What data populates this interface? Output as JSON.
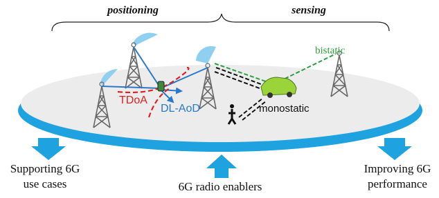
{
  "header": {
    "left": "positioning",
    "right": "sensing"
  },
  "labels": {
    "bistatic": "bistatic",
    "tdoa": "TDoA",
    "dl_aod": "DL-AoD",
    "monostatic": "monostatic"
  },
  "footer": {
    "left": [
      "Supporting 6G",
      "use cases"
    ],
    "center": "6G radio enablers",
    "right": [
      "Improving 6G",
      "performance"
    ]
  }
}
